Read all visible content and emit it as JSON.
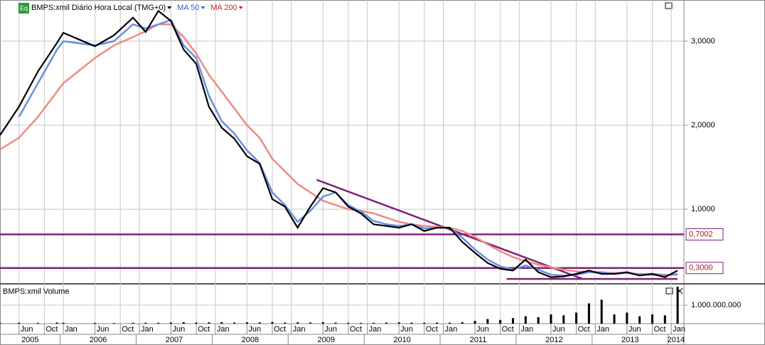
{
  "chart_data": [
    {
      "type": "line",
      "title": "BMPS:xmil Diário Hora Local (TMG+0)",
      "badge": "Eq",
      "x": [
        "2005-03",
        "2005-06",
        "2005-09",
        "2005-12",
        "2006-01",
        "2006-06",
        "2006-09",
        "2006-12",
        "2007-02",
        "2007-04",
        "2007-06",
        "2007-08",
        "2007-10",
        "2007-12",
        "2008-02",
        "2008-04",
        "2008-06",
        "2008-08",
        "2008-10",
        "2008-12",
        "2009-02",
        "2009-04",
        "2009-06",
        "2009-08",
        "2009-10",
        "2009-12",
        "2010-02",
        "2010-04",
        "2010-06",
        "2010-08",
        "2010-10",
        "2010-12",
        "2011-02",
        "2011-04",
        "2011-06",
        "2011-08",
        "2011-10",
        "2011-12",
        "2012-02",
        "2012-04",
        "2012-06",
        "2012-08",
        "2012-10",
        "2012-12",
        "2013-02",
        "2013-04",
        "2013-06",
        "2013-08",
        "2013-10",
        "2013-12",
        "2014-02"
      ],
      "series": [
        {
          "color": "#000000",
          "values": [
            1.88,
            2.22,
            2.64,
            2.98,
            3.1,
            2.94,
            3.07,
            3.28,
            3.11,
            3.36,
            3.24,
            2.9,
            2.73,
            2.22,
            1.97,
            1.84,
            1.63,
            1.54,
            1.12,
            1.03,
            0.78,
            1.03,
            1.25,
            1.2,
            1.03,
            0.95,
            0.82,
            0.8,
            0.78,
            0.82,
            0.74,
            0.78,
            0.78,
            0.61,
            0.48,
            0.36,
            0.29,
            0.27,
            0.4,
            0.25,
            0.19,
            0.2,
            0.23,
            0.27,
            0.23,
            0.23,
            0.25,
            0.21,
            0.23,
            0.19,
            0.27
          ]
        },
        {
          "name": "MA 50",
          "color": "#6a8fe0",
          "values": [
            null,
            2.1,
            2.5,
            2.9,
            3.0,
            2.95,
            3.0,
            3.2,
            3.15,
            3.2,
            3.25,
            2.95,
            2.8,
            2.35,
            2.05,
            1.9,
            1.7,
            1.55,
            1.2,
            1.05,
            0.85,
            0.98,
            1.15,
            1.2,
            1.05,
            0.97,
            0.86,
            0.82,
            0.8,
            0.82,
            0.77,
            0.78,
            0.78,
            0.66,
            0.52,
            0.4,
            0.32,
            0.28,
            0.33,
            0.28,
            0.22,
            0.21,
            0.22,
            0.25,
            0.25,
            0.23,
            0.24,
            0.22,
            0.22,
            0.21,
            0.23
          ]
        },
        {
          "name": "MA 200",
          "color": "#f08a80",
          "values": [
            1.71,
            1.85,
            2.1,
            2.4,
            2.5,
            2.8,
            2.95,
            3.05,
            3.12,
            3.2,
            3.2,
            3.05,
            2.85,
            2.6,
            2.4,
            2.2,
            2.0,
            1.85,
            1.6,
            1.45,
            1.3,
            1.2,
            1.1,
            1.05,
            1.0,
            0.98,
            0.95,
            0.9,
            0.85,
            0.82,
            0.8,
            0.79,
            0.78,
            0.74,
            0.67,
            0.58,
            0.5,
            0.43,
            0.38,
            0.34,
            0.31,
            0.28,
            0.26,
            0.25,
            0.24,
            0.24,
            0.24,
            0.23,
            0.23,
            0.22,
            0.22
          ]
        }
      ],
      "legend_colors": [
        "#3060d0",
        "#d02020"
      ],
      "xlim": [
        "2005-03",
        "2014-03"
      ],
      "xticks": [
        {
          "value": "2005-06",
          "label": "Jun"
        },
        {
          "value": "2005-10",
          "label": "Oct"
        },
        {
          "value": "2006-01",
          "label": "Jan"
        },
        {
          "value": "2006-06",
          "label": "Jun"
        },
        {
          "value": "2006-10",
          "label": "Oct"
        },
        {
          "value": "2007-01",
          "label": "Jan"
        },
        {
          "value": "2007-06",
          "label": "Jun"
        },
        {
          "value": "2007-10",
          "label": "Oct"
        },
        {
          "value": "2008-01",
          "label": "Jan"
        },
        {
          "value": "2008-06",
          "label": "Jun"
        },
        {
          "value": "2008-10",
          "label": "Oct"
        },
        {
          "value": "2009-01",
          "label": "Jan"
        },
        {
          "value": "2009-06",
          "label": "Jun"
        },
        {
          "value": "2009-10",
          "label": "Oct"
        },
        {
          "value": "2010-01",
          "label": "Jan"
        },
        {
          "value": "2010-06",
          "label": "Jun"
        },
        {
          "value": "2010-10",
          "label": "Oct"
        },
        {
          "value": "2011-01",
          "label": "Jan"
        },
        {
          "value": "2011-06",
          "label": "Jun"
        },
        {
          "value": "2011-10",
          "label": "Oct"
        },
        {
          "value": "2012-01",
          "label": "Jan"
        },
        {
          "value": "2012-06",
          "label": "Jun"
        },
        {
          "value": "2012-10",
          "label": "Oct"
        },
        {
          "value": "2013-01",
          "label": "Jan"
        },
        {
          "value": "2013-06",
          "label": "Jun"
        },
        {
          "value": "2013-10",
          "label": "Oct"
        },
        {
          "value": "2014-01",
          "label": "Jan"
        }
      ],
      "year_labels": [
        "2005",
        "2006",
        "2007",
        "2008",
        "2009",
        "2010",
        "2011",
        "2012",
        "2013",
        "2014"
      ],
      "ylim": [
        0.12,
        3.49
      ],
      "yticks": [
        {
          "value": 1,
          "label": "1,0000"
        },
        {
          "value": 2,
          "label": "2,0000"
        },
        {
          "value": 3,
          "label": "3,0000"
        }
      ],
      "grid": true,
      "hlines": [
        {
          "value": 0.7002,
          "label": "0,7002"
        },
        {
          "value": 0.3,
          "label": "0,3000"
        }
      ],
      "line_color": "#80207a",
      "trendlines": [
        {
          "x": [
            "2009-05",
            "2012-11"
          ],
          "values": [
            1.35,
            0.17
          ]
        },
        {
          "x": [
            "2011-11",
            "2014-02"
          ],
          "values": [
            0.17,
            0.17
          ]
        }
      ]
    },
    {
      "type": "bar",
      "title": "BMPS:xmil Volume",
      "x": [
        "2005-03",
        "2005-06",
        "2005-09",
        "2005-12",
        "2006-01",
        "2006-06",
        "2006-09",
        "2006-12",
        "2007-02",
        "2007-04",
        "2007-06",
        "2007-08",
        "2007-10",
        "2007-12",
        "2008-02",
        "2008-04",
        "2008-06",
        "2008-08",
        "2008-10",
        "2008-12",
        "2009-02",
        "2009-04",
        "2009-06",
        "2009-08",
        "2009-10",
        "2009-12",
        "2010-02",
        "2010-04",
        "2010-06",
        "2010-08",
        "2010-10",
        "2010-12",
        "2011-02",
        "2011-04",
        "2011-06",
        "2011-08",
        "2011-10",
        "2011-12",
        "2012-02",
        "2012-04",
        "2012-06",
        "2012-08",
        "2012-10",
        "2012-12",
        "2013-02",
        "2013-04",
        "2013-06",
        "2013-08",
        "2013-10",
        "2013-12",
        "2014-02"
      ],
      "values": [
        40000000,
        50000000,
        45000000,
        60000000,
        50000000,
        40000000,
        35000000,
        45000000,
        50000000,
        45000000,
        60000000,
        80000000,
        60000000,
        70000000,
        80000000,
        60000000,
        70000000,
        65000000,
        90000000,
        60000000,
        70000000,
        60000000,
        80000000,
        55000000,
        50000000,
        45000000,
        50000000,
        60000000,
        70000000,
        55000000,
        50000000,
        60000000,
        55000000,
        80000000,
        150000000,
        250000000,
        200000000,
        300000000,
        400000000,
        350000000,
        500000000,
        450000000,
        600000000,
        1100000000,
        1300000000,
        500000000,
        600000000,
        400000000,
        500000000,
        450000000,
        2000000000
      ],
      "color": "#000000",
      "ylim": [
        0,
        2080000000
      ],
      "yticks": [
        {
          "value": 1000000000,
          "label": "1.000.000.000"
        }
      ]
    }
  ]
}
